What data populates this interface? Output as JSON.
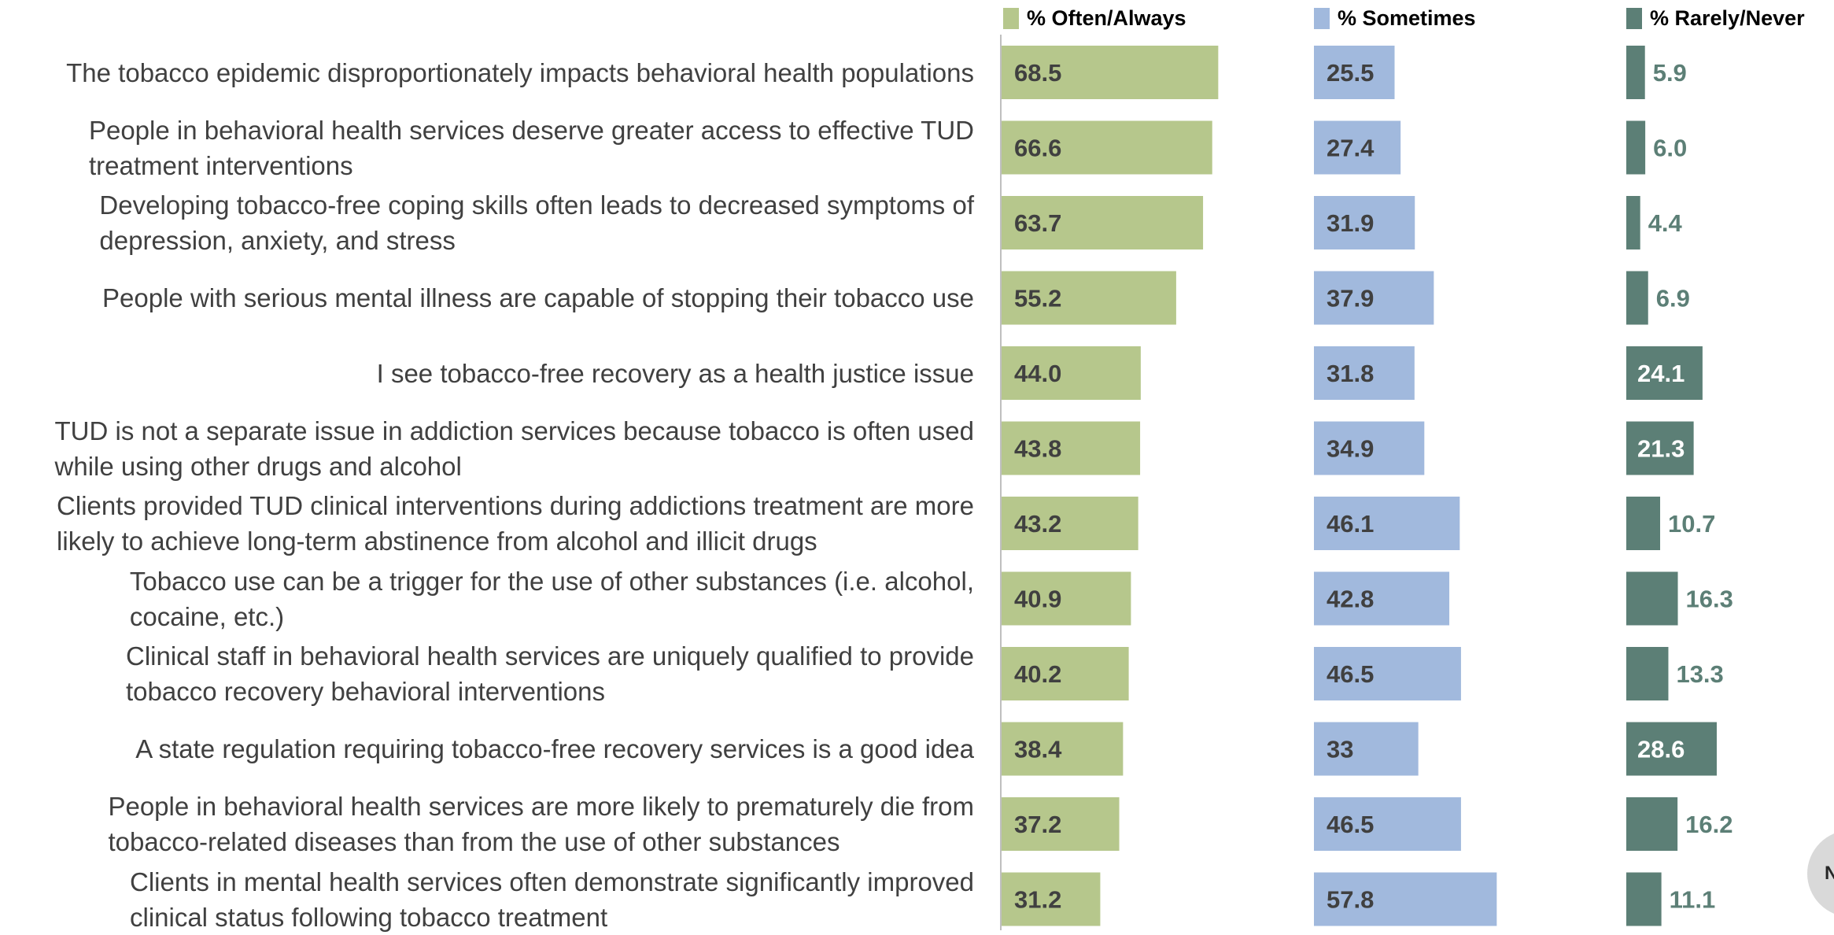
{
  "chart_data": {
    "type": "bar",
    "orientation": "horizontal",
    "categories": [
      [
        "The tobacco epidemic disproportionately impacts behavioral health populations"
      ],
      [
        "People in behavioral health services deserve greater access to effective TUD",
        "treatment interventions"
      ],
      [
        "Developing tobacco-free coping skills often leads to decreased symptoms of",
        "depression, anxiety, and stress"
      ],
      [
        "People with serious mental illness are capable of stopping their tobacco use"
      ],
      [
        "I see tobacco-free recovery as a health justice issue"
      ],
      [
        "TUD is not a separate issue in addiction services because tobacco is often used",
        "while using other drugs and alcohol"
      ],
      [
        "Clients provided TUD clinical interventions during addictions treatment are more",
        "likely to achieve long-term abstinence from alcohol and illicit drugs"
      ],
      [
        "Tobacco use can be a trigger for the use of other substances (i.e. alcohol,",
        "cocaine, etc.)"
      ],
      [
        "Clinical staff in behavioral health services are uniquely qualified to provide",
        "tobacco recovery behavioral interventions"
      ],
      [
        "A state regulation requiring tobacco-free recovery services is a good idea"
      ],
      [
        "People in behavioral health services are more likely to prematurely die from",
        "tobacco-related diseases than from the use of other substances"
      ],
      [
        "Clients in mental health services often demonstrate significantly improved",
        "clinical status following tobacco treatment"
      ]
    ],
    "series": [
      {
        "name": "% Often/Always",
        "color": "#b6c78c",
        "label_color": "#404040",
        "values": [
          68.5,
          66.6,
          63.7,
          55.2,
          44.0,
          43.8,
          43.2,
          40.9,
          40.2,
          38.4,
          37.2,
          31.2
        ],
        "labels": [
          "68.5",
          "66.6",
          "63.7",
          "55.2",
          "44.0",
          "43.8",
          "43.2",
          "40.9",
          "40.2",
          "38.4",
          "37.2",
          "31.2"
        ]
      },
      {
        "name": "% Sometimes",
        "color": "#a1b9dd",
        "label_color": "#404040",
        "values": [
          25.5,
          27.4,
          31.9,
          37.9,
          31.8,
          34.9,
          46.1,
          42.8,
          46.5,
          33,
          46.5,
          57.8
        ],
        "labels": [
          "25.5",
          "27.4",
          "31.9",
          "37.9",
          "31.8",
          "34.9",
          "46.1",
          "42.8",
          "46.5",
          "33",
          "46.5",
          "57.8"
        ]
      },
      {
        "name": "% Rarely/Never",
        "color": "#5c7f76",
        "label_color": "#5c7f76",
        "label_inside_color": "#ffffff",
        "values": [
          5.9,
          6.0,
          4.4,
          6.9,
          24.1,
          21.3,
          10.7,
          16.3,
          13.3,
          28.6,
          16.2,
          11.1
        ],
        "labels": [
          "5.9",
          "6.0",
          "4.4",
          "6.9",
          "24.1",
          "21.3",
          "10.7",
          "16.3",
          "13.3",
          "28.6",
          "16.2",
          "11.1"
        ]
      }
    ],
    "xlim": [
      0,
      100
    ],
    "legend": "top",
    "grid": false
  },
  "badge_text": "N"
}
